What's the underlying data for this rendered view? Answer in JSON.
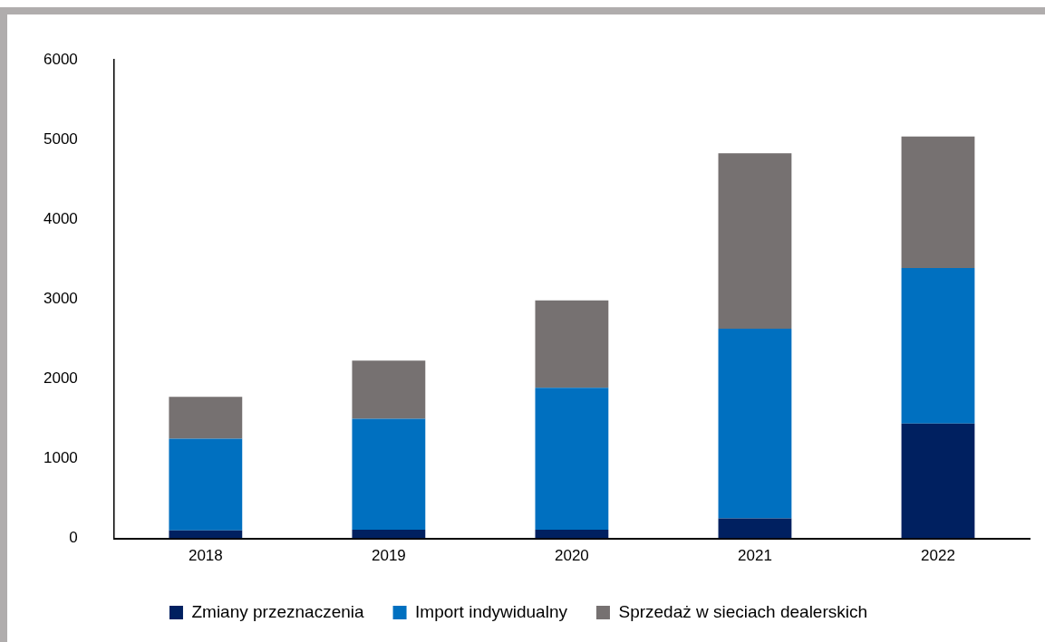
{
  "chart_data": {
    "type": "bar",
    "stacked": true,
    "categories": [
      "2018",
      "2019",
      "2020",
      "2021",
      "2022"
    ],
    "series": [
      {
        "name": "Zmiany przeznaczenia",
        "color": "#002060",
        "values": [
          100,
          110,
          110,
          250,
          1440
        ]
      },
      {
        "name": "Import indywidualny",
        "color": "#0070c0",
        "values": [
          1150,
          1390,
          1780,
          2380,
          1950
        ]
      },
      {
        "name": "Sprzedaż w sieciach dealerskich",
        "color": "#767171",
        "values": [
          525,
          730,
          1095,
          2200,
          1650
        ]
      }
    ],
    "ylim": [
      0,
      6000
    ],
    "yticks": [
      0,
      1000,
      2000,
      3000,
      4000,
      5000,
      6000
    ],
    "grid": false,
    "legend": "bottom"
  }
}
